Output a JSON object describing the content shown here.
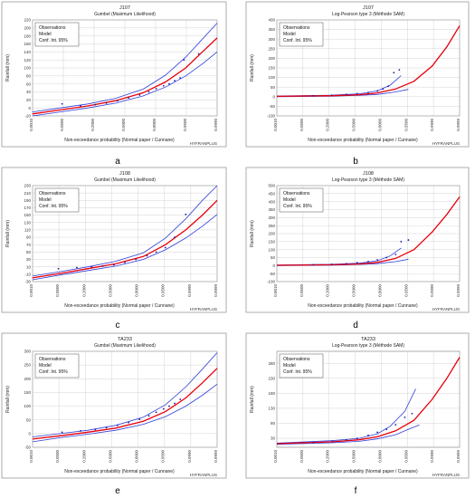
{
  "labels": {
    "legend_obs": "Observations",
    "legend_model": "Model",
    "legend_conf": "Conf. Int. 95%",
    "xlabel": "Non-exceedance probability (Normal paper / Cunnane)",
    "ylabel": "Rainfall (mm)",
    "watermark": "HYFRANPLUS"
  },
  "colors": {
    "model": "#e8000b",
    "conf": "#2f3fd9",
    "obs": "#1a1aa8",
    "grid": "#c8c8c8"
  },
  "chart_data": [
    {
      "panel": "a",
      "type": "line",
      "title": "J107",
      "subtitle": "Gumbel (Maximum Likelihood)",
      "x_ticks": [
        "0.0010",
        "0.0500",
        "0.2000",
        "0.5000",
        "0.8000",
        "0.9500",
        "0.9990"
      ],
      "y_ticks": [
        -20,
        0,
        20,
        40,
        60,
        80,
        100,
        120,
        140,
        160,
        180,
        200,
        220
      ],
      "ylim": [
        -20,
        220
      ],
      "model": [
        [
          0,
          -15
        ],
        [
          0.15,
          -5
        ],
        [
          0.3,
          5
        ],
        [
          0.45,
          18
        ],
        [
          0.6,
          38
        ],
        [
          0.72,
          65
        ],
        [
          0.83,
          100
        ],
        [
          0.92,
          140
        ],
        [
          1,
          175
        ]
      ],
      "upper": [
        [
          0,
          -10
        ],
        [
          0.15,
          0
        ],
        [
          0.3,
          10
        ],
        [
          0.45,
          24
        ],
        [
          0.6,
          47
        ],
        [
          0.72,
          82
        ],
        [
          0.83,
          127
        ],
        [
          0.92,
          172
        ],
        [
          1,
          212
        ]
      ],
      "lower": [
        [
          0,
          -20
        ],
        [
          0.15,
          -10
        ],
        [
          0.3,
          0
        ],
        [
          0.45,
          12
        ],
        [
          0.6,
          30
        ],
        [
          0.72,
          52
        ],
        [
          0.83,
          80
        ],
        [
          0.92,
          110
        ],
        [
          1,
          140
        ]
      ],
      "obs": [
        [
          0.16,
          10
        ],
        [
          0.26,
          5
        ],
        [
          0.34,
          8
        ],
        [
          0.4,
          12
        ],
        [
          0.46,
          18
        ],
        [
          0.52,
          25
        ],
        [
          0.58,
          32
        ],
        [
          0.63,
          40
        ],
        [
          0.67,
          48
        ],
        [
          0.71,
          55
        ],
        [
          0.74,
          60
        ],
        [
          0.77,
          68
        ],
        [
          0.8,
          75
        ],
        [
          0.82,
          120
        ],
        [
          0.9,
          135
        ]
      ]
    },
    {
      "panel": "b",
      "type": "line",
      "title": "J107",
      "subtitle": "Log-Pearson type 3 (Méthode SAM)",
      "x_ticks": [
        "0.0010",
        "0.0500",
        "0.2000",
        "0.5000",
        "0.8000",
        "0.9500",
        "0.9990",
        "0.9999"
      ],
      "y_ticks": [
        -100,
        -50,
        0,
        50,
        100,
        150,
        200,
        250,
        300,
        350,
        400
      ],
      "ylim": [
        -100,
        400
      ],
      "model": [
        [
          0,
          2
        ],
        [
          0.3,
          5
        ],
        [
          0.45,
          10
        ],
        [
          0.55,
          20
        ],
        [
          0.65,
          40
        ],
        [
          0.75,
          80
        ],
        [
          0.85,
          160
        ],
        [
          0.93,
          260
        ],
        [
          1,
          370
        ]
      ],
      "upper": [
        [
          0,
          4
        ],
        [
          0.3,
          8
        ],
        [
          0.45,
          15
        ],
        [
          0.55,
          30
        ],
        [
          0.62,
          60
        ],
        [
          0.68,
          110
        ]
      ],
      "lower": [
        [
          0,
          0
        ],
        [
          0.3,
          3
        ],
        [
          0.45,
          7
        ],
        [
          0.55,
          12
        ],
        [
          0.65,
          25
        ],
        [
          0.72,
          38
        ]
      ],
      "obs": [
        [
          0.2,
          5
        ],
        [
          0.3,
          8
        ],
        [
          0.38,
          12
        ],
        [
          0.44,
          16
        ],
        [
          0.5,
          22
        ],
        [
          0.55,
          30
        ],
        [
          0.58,
          40
        ],
        [
          0.61,
          55
        ],
        [
          0.64,
          125
        ],
        [
          0.67,
          140
        ]
      ]
    },
    {
      "panel": "c",
      "type": "line",
      "title": "J108",
      "subtitle": "Gumbel (Maximum Likelihood)",
      "x_ticks": [
        "0.0010",
        "0.0500",
        "0.2000",
        "0.5000",
        "0.8000",
        "0.9500",
        "0.9990",
        "0.9999"
      ],
      "y_ticks": [
        -30,
        -10,
        10,
        30,
        50,
        70,
        90,
        110,
        130,
        150,
        170,
        190,
        210,
        230
      ],
      "ylim": [
        -30,
        230
      ],
      "model": [
        [
          0,
          -20
        ],
        [
          0.15,
          -8
        ],
        [
          0.3,
          5
        ],
        [
          0.45,
          18
        ],
        [
          0.6,
          38
        ],
        [
          0.72,
          70
        ],
        [
          0.83,
          110
        ],
        [
          0.92,
          150
        ],
        [
          1,
          190
        ]
      ],
      "upper": [
        [
          0,
          -15
        ],
        [
          0.15,
          -3
        ],
        [
          0.3,
          10
        ],
        [
          0.45,
          25
        ],
        [
          0.6,
          48
        ],
        [
          0.72,
          88
        ],
        [
          0.83,
          140
        ],
        [
          0.92,
          190
        ],
        [
          1,
          230
        ]
      ],
      "lower": [
        [
          0,
          -25
        ],
        [
          0.15,
          -12
        ],
        [
          0.3,
          0
        ],
        [
          0.45,
          12
        ],
        [
          0.6,
          30
        ],
        [
          0.72,
          56
        ],
        [
          0.83,
          88
        ],
        [
          0.92,
          120
        ],
        [
          1,
          152
        ]
      ],
      "obs": [
        [
          0.14,
          5
        ],
        [
          0.24,
          8
        ],
        [
          0.32,
          10
        ],
        [
          0.38,
          12
        ],
        [
          0.44,
          15
        ],
        [
          0.5,
          22
        ],
        [
          0.56,
          30
        ],
        [
          0.62,
          40
        ],
        [
          0.67,
          50
        ],
        [
          0.72,
          62
        ],
        [
          0.77,
          90
        ],
        [
          0.83,
          152
        ]
      ]
    },
    {
      "panel": "d",
      "type": "line",
      "title": "J108",
      "subtitle": "Log-Pearson type 3 (Méthode SAM)",
      "x_ticks": [
        "0.0010",
        "0.0500",
        "0.2000",
        "0.5000",
        "0.8000",
        "0.9500",
        "0.9990",
        "0.9999"
      ],
      "y_ticks": [
        -100,
        -50,
        0,
        50,
        100,
        150,
        200,
        250,
        300,
        350,
        400,
        450,
        500
      ],
      "ylim": [
        -100,
        500
      ],
      "model": [
        [
          0,
          2
        ],
        [
          0.3,
          5
        ],
        [
          0.45,
          10
        ],
        [
          0.55,
          20
        ],
        [
          0.65,
          45
        ],
        [
          0.75,
          100
        ],
        [
          0.85,
          210
        ],
        [
          0.93,
          320
        ],
        [
          1,
          430
        ]
      ],
      "upper": [
        [
          0,
          4
        ],
        [
          0.3,
          8
        ],
        [
          0.45,
          15
        ],
        [
          0.55,
          30
        ],
        [
          0.62,
          60
        ],
        [
          0.68,
          110
        ]
      ],
      "lower": [
        [
          0,
          0
        ],
        [
          0.3,
          3
        ],
        [
          0.45,
          7
        ],
        [
          0.55,
          12
        ],
        [
          0.65,
          25
        ],
        [
          0.72,
          40
        ]
      ],
      "obs": [
        [
          0.2,
          5
        ],
        [
          0.3,
          8
        ],
        [
          0.38,
          12
        ],
        [
          0.44,
          18
        ],
        [
          0.5,
          26
        ],
        [
          0.55,
          36
        ],
        [
          0.6,
          50
        ],
        [
          0.65,
          70
        ],
        [
          0.68,
          150
        ],
        [
          0.72,
          160
        ]
      ]
    },
    {
      "panel": "e",
      "type": "line",
      "title": "TA233",
      "subtitle": "Gumbel (Maximum Likelihood)",
      "x_ticks": [
        "0.0010",
        "0.0500",
        "0.2000",
        "0.5000",
        "0.8000",
        "0.9500",
        "0.9990",
        "0.9999"
      ],
      "y_ticks": [
        -50,
        0,
        50,
        100,
        150,
        200,
        250,
        300
      ],
      "ylim": [
        -50,
        300
      ],
      "model": [
        [
          0,
          -20
        ],
        [
          0.15,
          -8
        ],
        [
          0.3,
          5
        ],
        [
          0.45,
          20
        ],
        [
          0.6,
          45
        ],
        [
          0.72,
          80
        ],
        [
          0.83,
          130
        ],
        [
          0.92,
          185
        ],
        [
          1,
          238
        ]
      ],
      "upper": [
        [
          0,
          -12
        ],
        [
          0.15,
          0
        ],
        [
          0.3,
          12
        ],
        [
          0.45,
          30
        ],
        [
          0.6,
          60
        ],
        [
          0.72,
          105
        ],
        [
          0.83,
          170
        ],
        [
          0.92,
          235
        ],
        [
          1,
          295
        ]
      ],
      "lower": [
        [
          0,
          -30
        ],
        [
          0.15,
          -15
        ],
        [
          0.3,
          -2
        ],
        [
          0.45,
          12
        ],
        [
          0.6,
          34
        ],
        [
          0.72,
          62
        ],
        [
          0.83,
          100
        ],
        [
          0.92,
          140
        ],
        [
          1,
          180
        ]
      ],
      "obs": [
        [
          0.16,
          5
        ],
        [
          0.26,
          10
        ],
        [
          0.34,
          15
        ],
        [
          0.4,
          22
        ],
        [
          0.46,
          30
        ],
        [
          0.52,
          40
        ],
        [
          0.58,
          52
        ],
        [
          0.63,
          65
        ],
        [
          0.67,
          78
        ],
        [
          0.71,
          90
        ],
        [
          0.74,
          100
        ],
        [
          0.77,
          110
        ],
        [
          0.8,
          125
        ]
      ]
    },
    {
      "panel": "f",
      "type": "line",
      "title": "TA233",
      "subtitle": "Log-Pearson type 3 (Méthode SAM)",
      "x_ticks": [
        "0.0010",
        "0.0500",
        "0.2000",
        "0.5000",
        "0.8000",
        "0.9500",
        "0.9990",
        "0.9999"
      ],
      "y_ticks": [
        30,
        80,
        130,
        180,
        230,
        280
      ],
      "ylim": [
        0,
        320
      ],
      "model": [
        [
          0,
          12
        ],
        [
          0.3,
          18
        ],
        [
          0.45,
          25
        ],
        [
          0.55,
          35
        ],
        [
          0.65,
          55
        ],
        [
          0.75,
          90
        ],
        [
          0.85,
          160
        ],
        [
          0.93,
          230
        ],
        [
          1,
          300
        ]
      ],
      "upper": [
        [
          0,
          14
        ],
        [
          0.3,
          22
        ],
        [
          0.45,
          30
        ],
        [
          0.55,
          45
        ],
        [
          0.62,
          70
        ],
        [
          0.7,
          120
        ],
        [
          0.76,
          195
        ]
      ],
      "lower": [
        [
          0,
          10
        ],
        [
          0.3,
          15
        ],
        [
          0.45,
          20
        ],
        [
          0.55,
          28
        ],
        [
          0.65,
          42
        ],
        [
          0.72,
          60
        ],
        [
          0.78,
          75
        ]
      ],
      "obs": [
        [
          0.2,
          15
        ],
        [
          0.3,
          20
        ],
        [
          0.38,
          25
        ],
        [
          0.44,
          30
        ],
        [
          0.5,
          40
        ],
        [
          0.55,
          50
        ],
        [
          0.6,
          60
        ],
        [
          0.65,
          75
        ],
        [
          0.7,
          100
        ],
        [
          0.74,
          112
        ]
      ]
    }
  ],
  "panel_letters": [
    "a",
    "b",
    "c",
    "d",
    "e",
    "f"
  ]
}
